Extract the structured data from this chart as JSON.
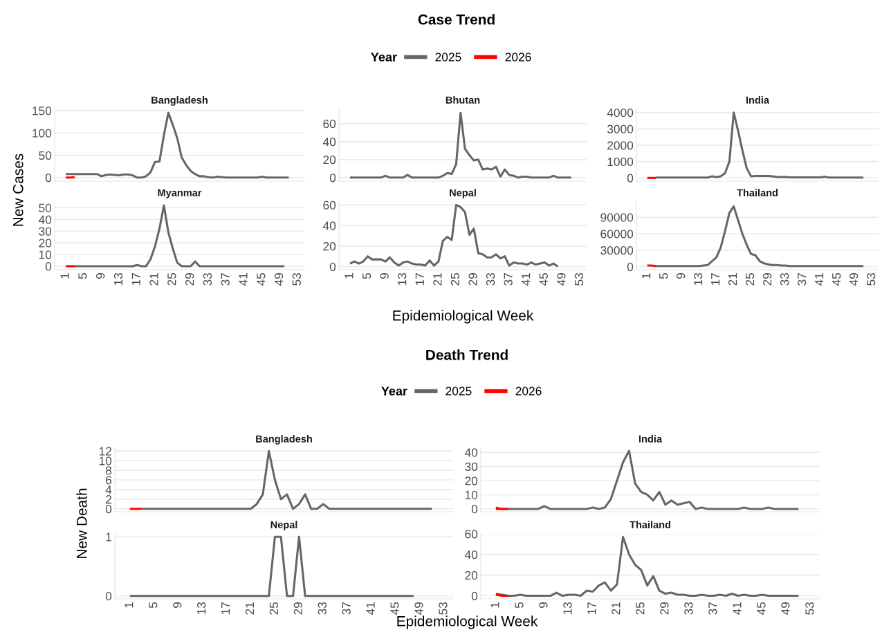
{
  "chart_data": [
    {
      "type": "line",
      "subtitle": "Bangladesh",
      "annotations": [
        "Case Trend"
      ],
      "ylabel": "New Cases",
      "legend": "top",
      "legend_title": "Year",
      "grid": "y",
      "tick_labels": "y",
      "xlim": [
        -1.5,
        54.5
      ],
      "xticks": [
        1,
        5,
        9,
        13,
        17,
        21,
        25,
        29,
        33,
        37,
        41,
        45,
        49,
        53
      ],
      "ylim": [
        -8,
        153
      ],
      "yticks": [
        0,
        50,
        100,
        150
      ],
      "series": [
        {
          "name": "2025",
          "color": "#666666",
          "x": [
            1,
            2,
            3,
            4,
            5,
            6,
            7,
            8,
            9,
            10,
            11,
            12,
            13,
            14,
            15,
            16,
            17,
            18,
            19,
            20,
            21,
            22,
            23,
            24,
            25,
            26,
            27,
            28,
            29,
            30,
            31,
            32,
            33,
            34,
            35,
            36,
            37,
            38,
            39,
            40,
            41,
            42,
            43,
            44,
            45,
            46,
            47,
            48,
            49,
            50,
            51
          ],
          "values": [
            8,
            8,
            8,
            8,
            8,
            8,
            8,
            8,
            3,
            6,
            7,
            6,
            5,
            7,
            7,
            5,
            0,
            0,
            3,
            12,
            35,
            36,
            95,
            145,
            118,
            88,
            45,
            28,
            15,
            8,
            3,
            3,
            1,
            0,
            2,
            1,
            0,
            0,
            0,
            0,
            0,
            0,
            0,
            0,
            2,
            0,
            0,
            0,
            0,
            0,
            0
          ]
        },
        {
          "name": "2026",
          "color": "#ff0000",
          "x": [
            1,
            2,
            3
          ],
          "values": [
            0,
            0,
            1
          ]
        }
      ]
    },
    {
      "type": "line",
      "subtitle": "Bhutan",
      "grid": "y",
      "tick_labels": "y",
      "xlim": [
        -1.5,
        54.5
      ],
      "xticks": [
        1,
        5,
        9,
        13,
        17,
        21,
        25,
        29,
        33,
        37,
        41,
        45,
        49,
        53
      ],
      "ylim": [
        -4,
        76
      ],
      "yticks": [
        0,
        20,
        40,
        60
      ],
      "series": [
        {
          "name": "2025",
          "color": "#666666",
          "x": [
            1,
            2,
            3,
            4,
            5,
            6,
            7,
            8,
            9,
            10,
            11,
            12,
            13,
            14,
            15,
            16,
            17,
            18,
            19,
            20,
            21,
            22,
            23,
            24,
            25,
            26,
            27,
            28,
            29,
            30,
            31,
            32,
            33,
            34,
            35,
            36,
            37,
            38,
            39,
            40,
            41,
            42,
            43,
            44,
            45,
            46,
            47,
            48,
            49,
            50,
            51
          ],
          "values": [
            0,
            0,
            0,
            0,
            0,
            0,
            0,
            0,
            2,
            0,
            0,
            0,
            0,
            3,
            0,
            0,
            0,
            0,
            0,
            0,
            0,
            2,
            5,
            4,
            15,
            72,
            32,
            25,
            19,
            20,
            9,
            10,
            9,
            12,
            1,
            9,
            3,
            2,
            0,
            1,
            1,
            0,
            0,
            0,
            0,
            0,
            2,
            0,
            0,
            0,
            0
          ]
        }
      ]
    },
    {
      "type": "line",
      "subtitle": "India",
      "grid": "y",
      "tick_labels": "y",
      "xlim": [
        -1.5,
        54.5
      ],
      "xticks": [
        1,
        5,
        9,
        13,
        17,
        21,
        25,
        29,
        33,
        37,
        41,
        45,
        49,
        53
      ],
      "ylim": [
        -200,
        4200
      ],
      "yticks": [
        0,
        1000,
        2000,
        3000,
        4000
      ],
      "series": [
        {
          "name": "2025",
          "color": "#666666",
          "x": [
            3,
            4,
            5,
            6,
            7,
            8,
            9,
            10,
            11,
            12,
            13,
            14,
            15,
            16,
            17,
            18,
            19,
            20,
            21,
            22,
            23,
            24,
            25,
            26,
            27,
            28,
            29,
            30,
            31,
            32,
            33,
            34,
            35,
            36,
            37,
            38,
            39,
            40,
            41,
            42,
            43,
            44,
            45,
            46,
            47,
            48,
            49,
            50,
            51
          ],
          "values": [
            20,
            20,
            20,
            20,
            20,
            20,
            20,
            20,
            20,
            20,
            20,
            20,
            20,
            100,
            50,
            100,
            300,
            1000,
            4000,
            2900,
            1700,
            600,
            100,
            120,
            120,
            120,
            120,
            100,
            60,
            50,
            60,
            30,
            30,
            30,
            30,
            30,
            30,
            30,
            30,
            80,
            20,
            20,
            20,
            20,
            20,
            20,
            20,
            20,
            20
          ]
        },
        {
          "name": "2026",
          "color": "#ff0000",
          "x": [
            1,
            2,
            3
          ],
          "values": [
            0,
            0,
            0
          ]
        }
      ]
    },
    {
      "type": "line",
      "subtitle": "Myanmar",
      "grid": "y",
      "xlim": [
        -1.5,
        54.5
      ],
      "xticks": [
        1,
        5,
        9,
        13,
        17,
        21,
        25,
        29,
        33,
        37,
        41,
        45,
        49,
        53
      ],
      "ylim": [
        -3,
        55
      ],
      "yticks": [
        0,
        10,
        20,
        30,
        40,
        50
      ],
      "series": [
        {
          "name": "2025",
          "color": "#666666",
          "x": [
            3,
            4,
            5,
            6,
            7,
            8,
            9,
            10,
            11,
            12,
            13,
            14,
            15,
            16,
            17,
            18,
            19,
            20,
            21,
            22,
            23,
            24,
            25,
            26,
            27,
            28,
            29,
            30,
            31,
            32,
            33,
            34,
            35,
            36,
            37,
            38,
            39,
            40,
            41,
            42,
            43,
            44,
            45,
            46,
            47,
            48,
            49,
            50
          ],
          "values": [
            0,
            0,
            0,
            0,
            0,
            0,
            0,
            0,
            0,
            0,
            0,
            0,
            0,
            0,
            1,
            0,
            0,
            6,
            17,
            32,
            52,
            29,
            15,
            3,
            0,
            0,
            0,
            4,
            0,
            0,
            0,
            0,
            0,
            0,
            0,
            0,
            0,
            0,
            0,
            0,
            0,
            0,
            0,
            0,
            0,
            0,
            0,
            0
          ]
        },
        {
          "name": "2026",
          "color": "#ff0000",
          "x": [
            1,
            2,
            3
          ],
          "values": [
            0,
            0,
            0
          ]
        }
      ]
    },
    {
      "type": "line",
      "subtitle": "Nepal",
      "xlabel": "Epidemiological Week",
      "grid": "y",
      "xlim": [
        -1.5,
        54.5
      ],
      "xticks": [
        1,
        5,
        9,
        13,
        17,
        21,
        25,
        29,
        33,
        37,
        41,
        45,
        49,
        53
      ],
      "ylim": [
        -3,
        63
      ],
      "yticks": [
        0,
        20,
        40,
        60
      ],
      "series": [
        {
          "name": "2025",
          "color": "#666666",
          "x": [
            1,
            2,
            3,
            4,
            5,
            6,
            7,
            8,
            9,
            10,
            11,
            12,
            13,
            14,
            15,
            16,
            17,
            18,
            19,
            20,
            21,
            22,
            23,
            24,
            25,
            26,
            27,
            28,
            29,
            30,
            31,
            32,
            33,
            34,
            35,
            36,
            37,
            38,
            39,
            40,
            41,
            42,
            43,
            44,
            45,
            46,
            47,
            48
          ],
          "values": [
            3,
            5,
            3,
            5,
            10,
            7,
            7,
            7,
            5,
            9,
            4,
            1,
            4,
            5,
            3,
            2,
            2,
            1,
            6,
            1,
            5,
            25,
            29,
            26,
            60,
            58,
            53,
            31,
            37,
            13,
            12,
            9,
            9,
            12,
            8,
            10,
            1,
            4,
            3,
            3,
            2,
            4,
            2,
            3,
            4,
            1,
            3,
            0
          ]
        }
      ]
    },
    {
      "type": "line",
      "subtitle": "Thailand",
      "grid": "y",
      "xlim": [
        -1.5,
        54.5
      ],
      "xticks": [
        1,
        5,
        9,
        13,
        17,
        21,
        25,
        29,
        33,
        37,
        41,
        45,
        49,
        53
      ],
      "ylim": [
        -5600,
        118000
      ],
      "yticks": [
        0,
        30000,
        60000,
        90000
      ],
      "series": [
        {
          "name": "2025",
          "color": "#666666",
          "x": [
            3,
            4,
            5,
            6,
            7,
            8,
            9,
            10,
            11,
            12,
            13,
            14,
            15,
            16,
            17,
            18,
            19,
            20,
            21,
            22,
            23,
            24,
            25,
            26,
            27,
            28,
            29,
            30,
            31,
            32,
            33,
            34,
            35,
            36,
            37,
            38,
            39,
            40,
            41,
            42,
            43,
            44,
            45,
            46,
            47,
            48,
            49,
            50,
            51
          ],
          "values": [
            1000,
            1000,
            1000,
            1000,
            1000,
            1000,
            1000,
            1000,
            1000,
            1000,
            1000,
            2000,
            3000,
            10000,
            17000,
            35000,
            65000,
            98000,
            110000,
            85000,
            60000,
            40000,
            23000,
            21000,
            10000,
            6000,
            4000,
            3000,
            3000,
            2000,
            2000,
            1000,
            1000,
            1000,
            1000,
            1000,
            1000,
            1000,
            1000,
            1000,
            1000,
            1000,
            1000,
            1000,
            1000,
            1000,
            1000,
            1000,
            1000
          ]
        },
        {
          "name": "2026",
          "color": "#ff0000",
          "x": [
            1,
            2,
            3
          ],
          "values": [
            2000,
            2000,
            1000
          ]
        }
      ]
    },
    {
      "type": "line",
      "subtitle": "Bangladesh",
      "annotations": [
        "Death Trend"
      ],
      "ylabel": "New Death",
      "legend": "top",
      "legend_title": "Year",
      "grid": "y",
      "tick_labels": "y",
      "xlim": [
        -1.5,
        54.5
      ],
      "xticks": [
        1,
        5,
        9,
        13,
        17,
        21,
        25,
        29,
        33,
        37,
        41,
        45,
        49,
        53
      ],
      "ylim": [
        -0.6,
        12.6
      ],
      "yticks": [
        0,
        2,
        4,
        6,
        8,
        10,
        12
      ],
      "series": [
        {
          "name": "2025",
          "color": "#666666",
          "x": [
            3,
            4,
            5,
            6,
            7,
            8,
            9,
            10,
            11,
            12,
            13,
            14,
            15,
            16,
            17,
            18,
            19,
            20,
            21,
            22,
            23,
            24,
            25,
            26,
            27,
            28,
            29,
            30,
            31,
            32,
            33,
            34,
            35,
            36,
            37,
            38,
            39,
            40,
            41,
            42,
            43,
            44,
            45,
            46,
            47,
            48,
            49,
            50,
            51
          ],
          "values": [
            0,
            0,
            0,
            0,
            0,
            0,
            0,
            0,
            0,
            0,
            0,
            0,
            0,
            0,
            0,
            0,
            0,
            0,
            0,
            1,
            3,
            12,
            6,
            2,
            3,
            0,
            1,
            3,
            0,
            0,
            1,
            0,
            0,
            0,
            0,
            0,
            0,
            0,
            0,
            0,
            0,
            0,
            0,
            0,
            0,
            0,
            0,
            0,
            0
          ]
        },
        {
          "name": "2026",
          "color": "#ff0000",
          "x": [
            1,
            2,
            3
          ],
          "values": [
            0,
            0,
            0
          ]
        }
      ]
    },
    {
      "type": "line",
      "subtitle": "India",
      "grid": "y",
      "tick_labels": "y",
      "xlim": [
        -1.5,
        54.5
      ],
      "xticks": [
        1,
        5,
        9,
        13,
        17,
        21,
        25,
        29,
        33,
        37,
        41,
        45,
        49,
        53
      ],
      "ylim": [
        -2,
        43
      ],
      "yticks": [
        0,
        10,
        20,
        30,
        40
      ],
      "series": [
        {
          "name": "2025",
          "color": "#666666",
          "x": [
            1,
            2,
            3,
            4,
            5,
            6,
            7,
            8,
            9,
            10,
            11,
            12,
            13,
            14,
            15,
            16,
            17,
            18,
            19,
            20,
            21,
            22,
            23,
            24,
            25,
            26,
            27,
            28,
            29,
            30,
            31,
            32,
            33,
            34,
            35,
            36,
            37,
            38,
            39,
            40,
            41,
            42,
            43,
            44,
            45,
            46,
            47,
            48,
            49,
            50,
            51
          ],
          "values": [
            1,
            0,
            0,
            0,
            0,
            0,
            0,
            0,
            2,
            0,
            0,
            0,
            0,
            0,
            0,
            0,
            1,
            0,
            1,
            7,
            20,
            33,
            41,
            18,
            12,
            10,
            6,
            12,
            3,
            6,
            3,
            4,
            5,
            0,
            1,
            0,
            0,
            0,
            0,
            0,
            0,
            1,
            0,
            0,
            0,
            1,
            0,
            0,
            0,
            0,
            0
          ]
        },
        {
          "name": "2026",
          "color": "#ff0000",
          "x": [
            1,
            2,
            3
          ],
          "values": [
            0,
            0,
            0
          ]
        }
      ]
    },
    {
      "type": "line",
      "subtitle": "Nepal",
      "xlabel": "Epidemiological Week",
      "grid": "y",
      "xlim": [
        -1.5,
        54.5
      ],
      "xticks": [
        1,
        5,
        9,
        13,
        17,
        21,
        25,
        29,
        33,
        37,
        41,
        45,
        49,
        53
      ],
      "ylim": [
        -0.05,
        1.05
      ],
      "yticks": [
        0,
        1
      ],
      "series": [
        {
          "name": "2025",
          "color": "#666666",
          "x": [
            1,
            2,
            3,
            4,
            5,
            6,
            7,
            8,
            9,
            10,
            11,
            12,
            13,
            14,
            15,
            16,
            17,
            18,
            19,
            20,
            21,
            22,
            23,
            24,
            25,
            26,
            27,
            28,
            29,
            30,
            31,
            32,
            33,
            34,
            35,
            36,
            37,
            38,
            39,
            40,
            41,
            42,
            43,
            44,
            45,
            46,
            47,
            48
          ],
          "values": [
            0,
            0,
            0,
            0,
            0,
            0,
            0,
            0,
            0,
            0,
            0,
            0,
            0,
            0,
            0,
            0,
            0,
            0,
            0,
            0,
            0,
            0,
            0,
            0,
            1,
            1,
            0,
            0,
            1,
            0,
            0,
            0,
            0,
            0,
            0,
            0,
            0,
            0,
            0,
            0,
            0,
            0,
            0,
            0,
            0,
            0,
            0,
            0
          ]
        }
      ]
    },
    {
      "type": "line",
      "subtitle": "Thailand",
      "grid": "y",
      "xlim": [
        -1.5,
        54.5
      ],
      "xticks": [
        1,
        5,
        9,
        13,
        17,
        21,
        25,
        29,
        33,
        37,
        41,
        45,
        49,
        53
      ],
      "ylim": [
        -3,
        60
      ],
      "yticks": [
        0,
        20,
        40,
        60
      ],
      "series": [
        {
          "name": "2025",
          "color": "#666666",
          "x": [
            1,
            2,
            3,
            4,
            5,
            6,
            7,
            8,
            9,
            10,
            11,
            12,
            13,
            14,
            15,
            16,
            17,
            18,
            19,
            20,
            21,
            22,
            23,
            24,
            25,
            26,
            27,
            28,
            29,
            30,
            31,
            32,
            33,
            34,
            35,
            36,
            37,
            38,
            39,
            40,
            41,
            42,
            43,
            44,
            45,
            46,
            47,
            48,
            49,
            50,
            51
          ],
          "values": [
            2,
            1,
            0,
            0,
            1,
            0,
            0,
            0,
            0,
            0,
            3,
            0,
            1,
            1,
            0,
            5,
            4,
            10,
            13,
            5,
            11,
            57,
            40,
            30,
            25,
            10,
            19,
            5,
            2,
            3,
            1,
            1,
            0,
            0,
            1,
            0,
            0,
            1,
            0,
            2,
            0,
            1,
            0,
            0,
            1,
            0,
            0,
            0,
            0,
            0,
            0
          ]
        },
        {
          "name": "2026",
          "color": "#ff0000",
          "x": [
            1,
            2,
            3
          ],
          "values": [
            1,
            0,
            0
          ]
        }
      ]
    }
  ]
}
